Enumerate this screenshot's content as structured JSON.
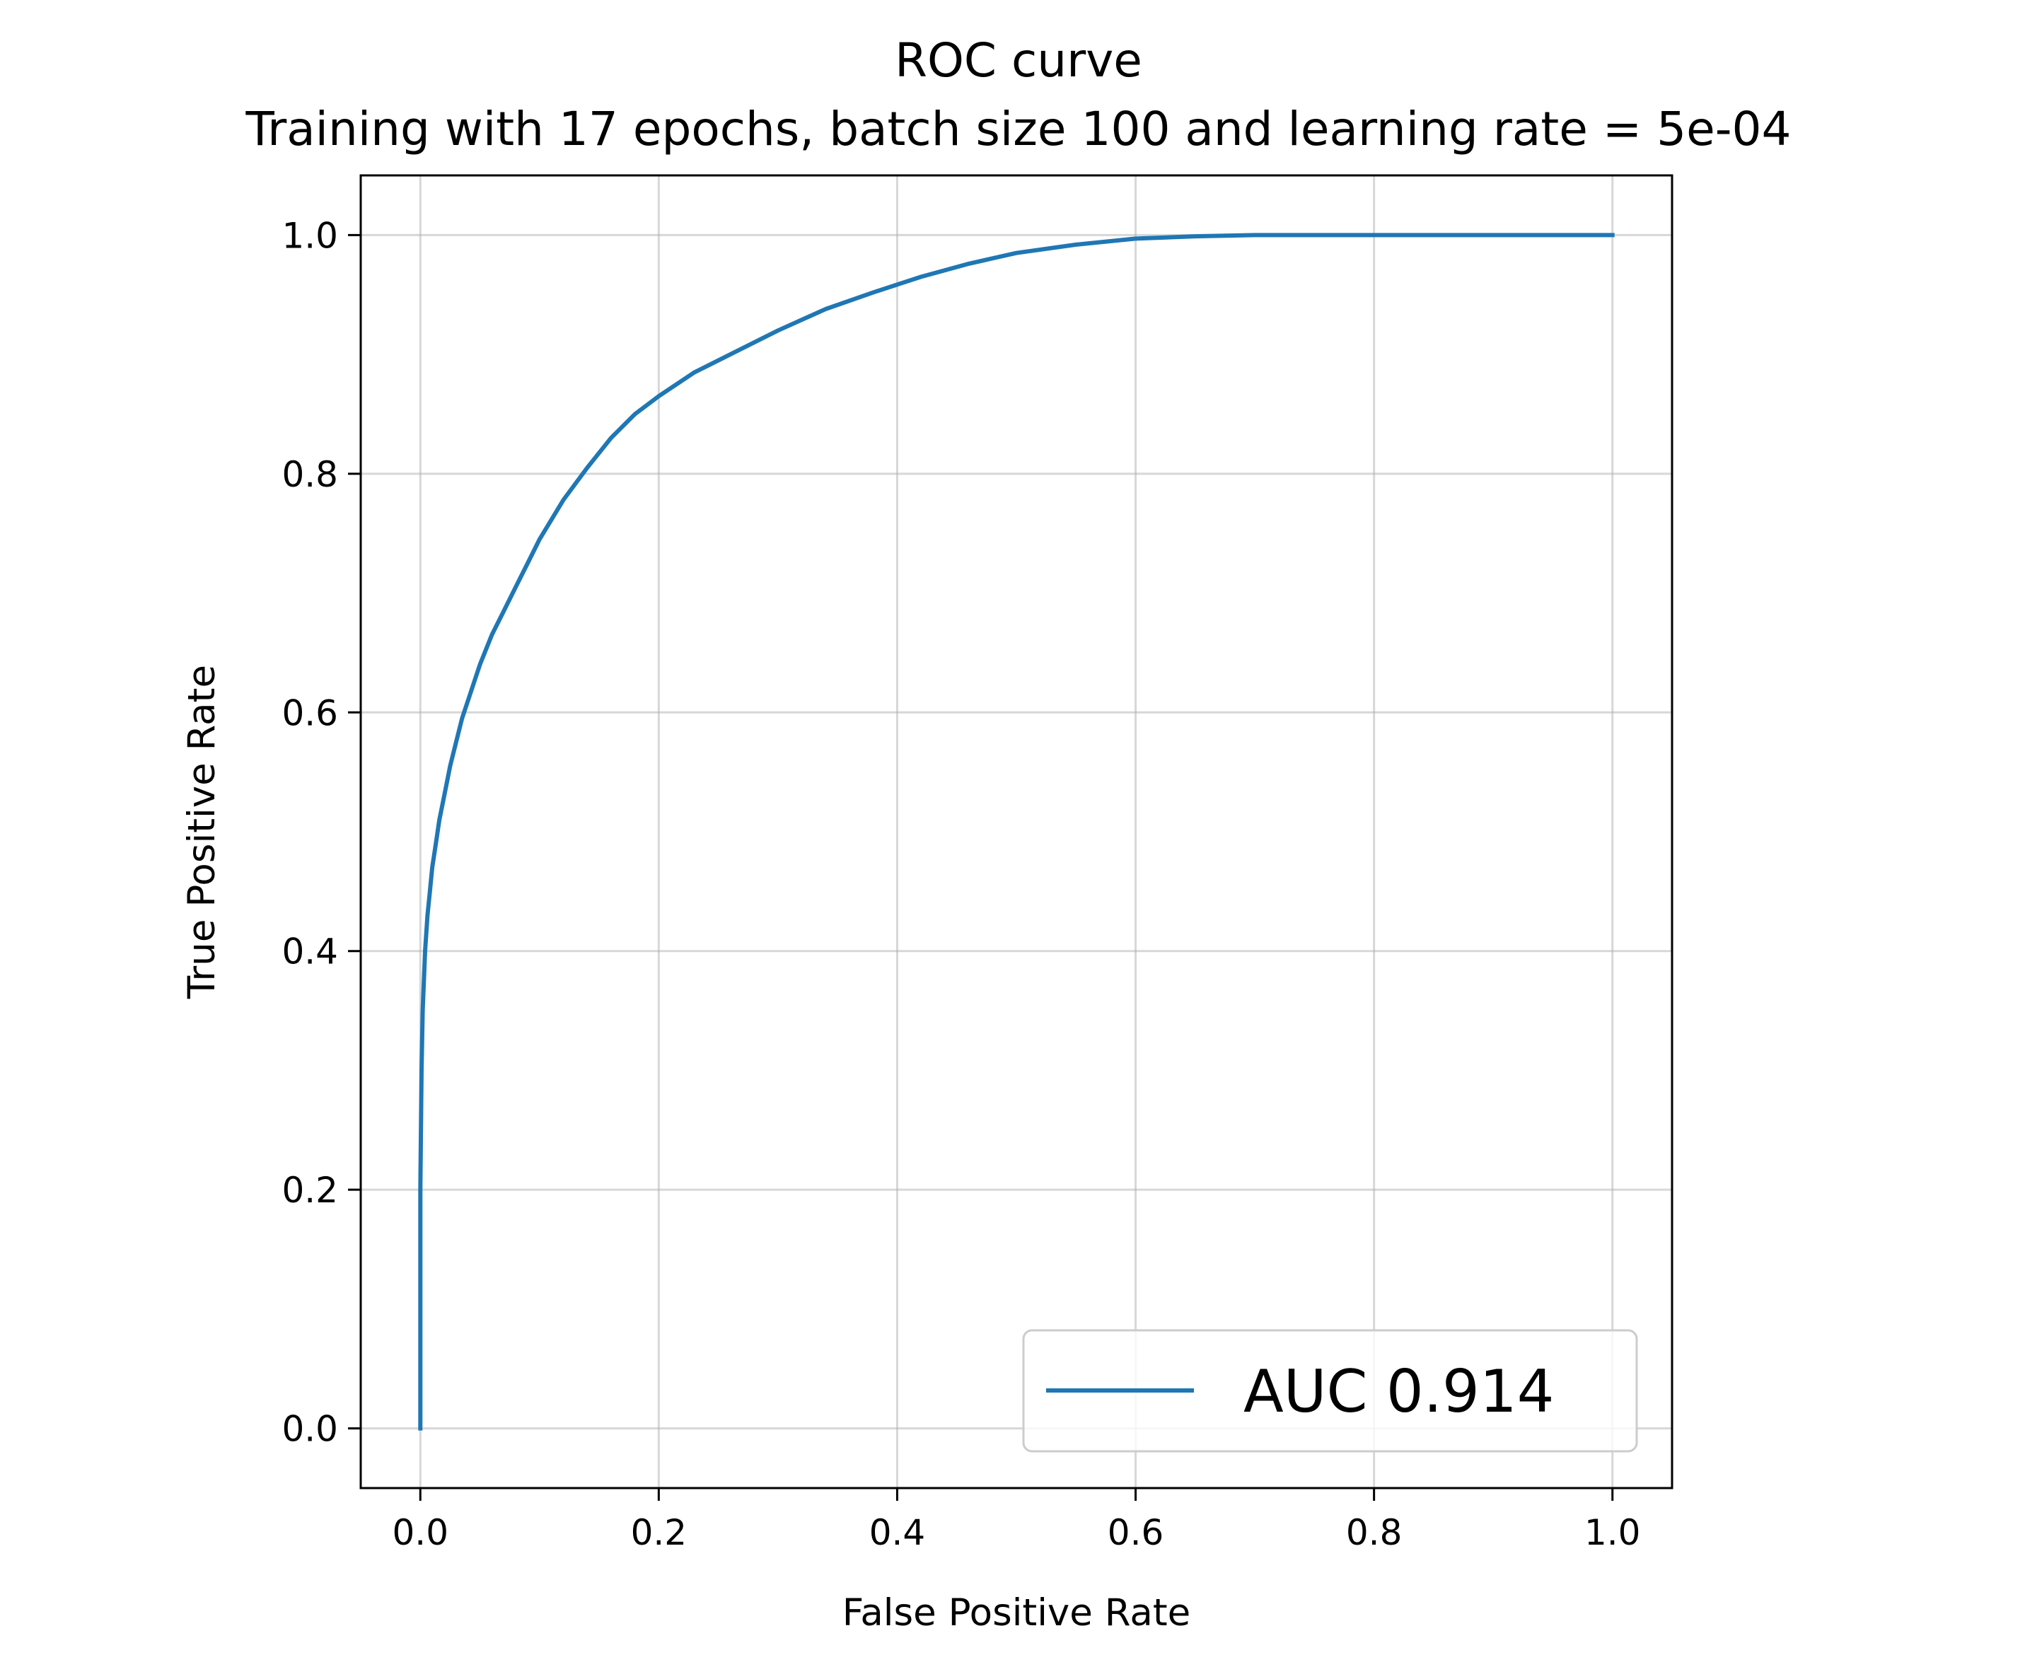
{
  "chart_data": {
    "type": "line",
    "title": "ROC curve",
    "subtitle": "Training with 17 epochs, batch size 100 and learning rate = 5e-04",
    "xlabel": "False Positive Rate",
    "ylabel": "True Positive Rate",
    "xlim": [
      -0.05,
      1.05
    ],
    "ylim": [
      -0.05,
      1.05
    ],
    "x_ticks": [
      0.0,
      0.2,
      0.4,
      0.6,
      0.8,
      1.0
    ],
    "x_tick_labels": [
      "0.0",
      "0.2",
      "0.4",
      "0.6",
      "0.8",
      "1.0"
    ],
    "y_ticks": [
      0.0,
      0.2,
      0.4,
      0.6,
      0.8,
      1.0
    ],
    "y_tick_labels": [
      "0.0",
      "0.2",
      "0.4",
      "0.6",
      "0.8",
      "1.0"
    ],
    "grid": true,
    "legend_position": "lower-right",
    "series": [
      {
        "name": "AUC 0.914",
        "color": "#1f77b4",
        "x": [
          0.0,
          0.0,
          0.001,
          0.002,
          0.004,
          0.006,
          0.008,
          0.01,
          0.013,
          0.016,
          0.02,
          0.025,
          0.03,
          0.035,
          0.04,
          0.05,
          0.06,
          0.07,
          0.08,
          0.09,
          0.1,
          0.12,
          0.14,
          0.16,
          0.18,
          0.2,
          0.23,
          0.26,
          0.3,
          0.34,
          0.38,
          0.42,
          0.46,
          0.5,
          0.55,
          0.6,
          0.65,
          0.7,
          0.8,
          0.9,
          1.0
        ],
        "y": [
          0.0,
          0.2,
          0.3,
          0.35,
          0.4,
          0.43,
          0.45,
          0.47,
          0.49,
          0.51,
          0.53,
          0.555,
          0.575,
          0.595,
          0.61,
          0.64,
          0.665,
          0.685,
          0.705,
          0.725,
          0.745,
          0.778,
          0.805,
          0.83,
          0.85,
          0.865,
          0.885,
          0.9,
          0.92,
          0.938,
          0.952,
          0.965,
          0.976,
          0.985,
          0.992,
          0.997,
          0.999,
          1.0,
          1.0,
          1.0,
          1.0
        ]
      }
    ]
  }
}
